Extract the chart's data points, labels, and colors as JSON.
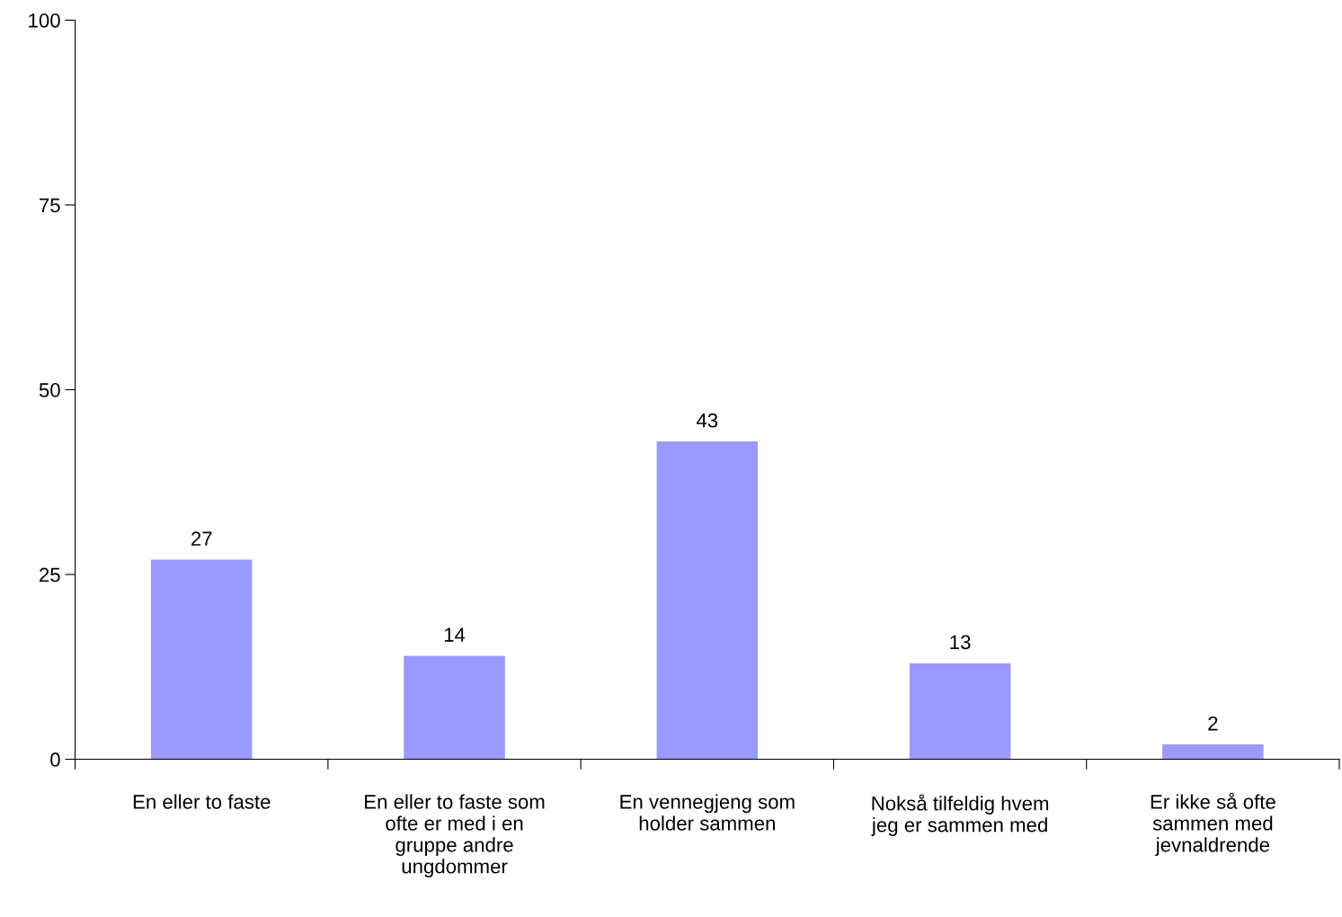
{
  "chart_data": {
    "type": "bar",
    "categories": [
      "En eller to faste",
      "En eller to faste som\nofte er med i en\ngruppe andre\nungdommer",
      "En vennegjeng som\nholder sammen",
      "Nokså tilfeldig hvem\njeg er sammen med",
      "Er ikke så ofte\nsammen med\njevnaldrende"
    ],
    "values": [
      27,
      14,
      43,
      13,
      2
    ],
    "color": "#9999ff",
    "ylim": [
      0,
      100
    ],
    "yticks": [
      0,
      25,
      50,
      75,
      100
    ],
    "data_labels": true,
    "grid": false,
    "legend": false
  }
}
